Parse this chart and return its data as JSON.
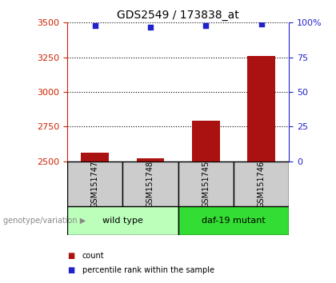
{
  "title": "GDS2549 / 173838_at",
  "samples": [
    "GSM151747",
    "GSM151748",
    "GSM151745",
    "GSM151746"
  ],
  "counts": [
    2560,
    2520,
    2790,
    3260
  ],
  "percentiles": [
    98,
    97,
    98,
    99
  ],
  "ylim_left": [
    2500,
    3500
  ],
  "ylim_right": [
    0,
    100
  ],
  "yticks_left": [
    2500,
    2750,
    3000,
    3250,
    3500
  ],
  "yticks_right": [
    0,
    25,
    50,
    75,
    100
  ],
  "groups": [
    {
      "label": "wild type",
      "indices": [
        0,
        1
      ],
      "color": "#bbffbb"
    },
    {
      "label": "daf-19 mutant",
      "indices": [
        2,
        3
      ],
      "color": "#33dd33"
    }
  ],
  "bar_color": "#aa1111",
  "point_color": "#2222cc",
  "bar_width": 0.5,
  "sample_box_color": "#cccccc",
  "title_color": "#000000",
  "left_axis_color": "#cc2200",
  "right_axis_color": "#2222cc",
  "legend_items": [
    {
      "label": "count",
      "color": "#aa1111"
    },
    {
      "label": "percentile rank within the sample",
      "color": "#2222cc"
    }
  ],
  "genotype_label": "genotype/variation"
}
